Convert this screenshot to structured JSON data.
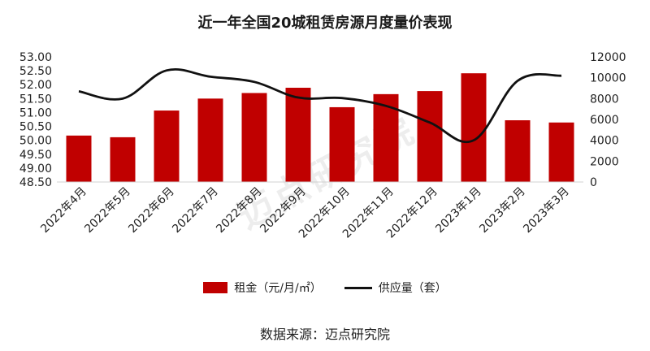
{
  "title": "近一年全国20城租赁房源月度量价表现",
  "source_note": "数据来源：迈点研究院",
  "watermark_text": "迈点研究院",
  "colors": {
    "bar": "#c00000",
    "line": "#111111",
    "axis": "#d0d0d0"
  },
  "chart_data": {
    "type": "bar",
    "categories": [
      "2022年4月",
      "2022年5月",
      "2022年6月",
      "2022年7月",
      "2022年8月",
      "2022年9月",
      "2022年10月",
      "2022年11月",
      "2022年12月",
      "2023年1月",
      "2023年2月",
      "2023年3月"
    ],
    "series": [
      {
        "name": "租金（元/月/㎡）",
        "type": "bar",
        "axis": "left",
        "values": [
          50.17,
          50.11,
          51.07,
          51.5,
          51.7,
          51.89,
          51.19,
          51.66,
          51.77,
          52.41,
          50.72,
          50.64
        ]
      },
      {
        "name": "供应量（套）",
        "type": "line",
        "axis": "right",
        "values": [
          8700,
          8000,
          10700,
          10100,
          9600,
          8100,
          8050,
          7300,
          5700,
          4000,
          9700,
          10200
        ]
      }
    ],
    "left_axis": {
      "min": 48.5,
      "max": 53.0,
      "ticks": [
        "48.50",
        "49.00",
        "49.50",
        "50.00",
        "50.50",
        "51.00",
        "51.50",
        "52.00",
        "52.50",
        "53.00"
      ]
    },
    "right_axis": {
      "min": 0,
      "max": 12000,
      "ticks": [
        "0",
        "2000",
        "4000",
        "6000",
        "8000",
        "10000",
        "12000"
      ]
    },
    "legend_position": "bottom",
    "grid": false
  }
}
